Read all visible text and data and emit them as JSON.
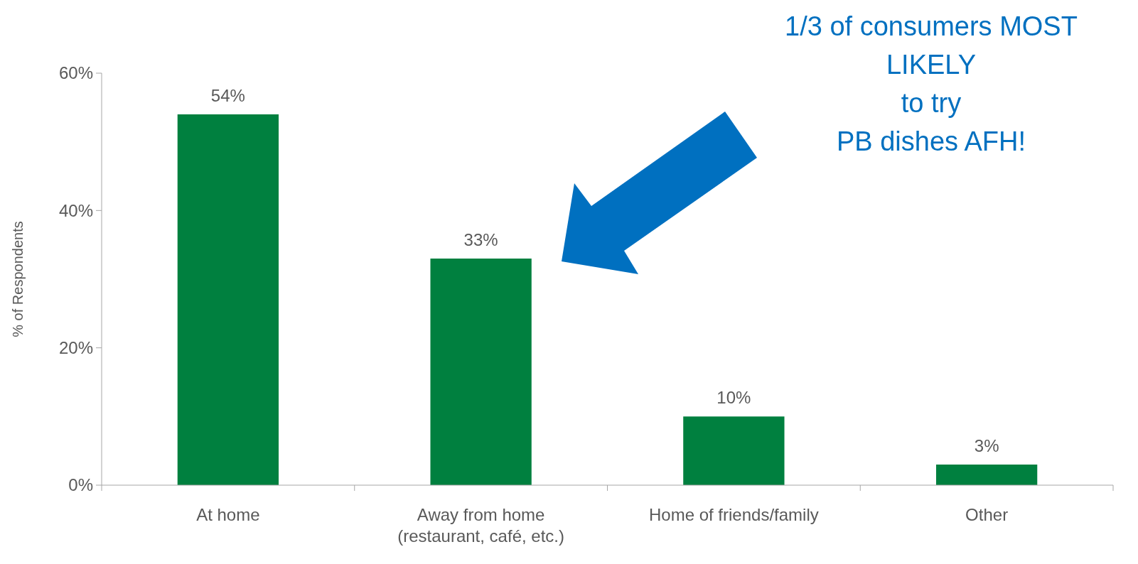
{
  "chart_data": {
    "type": "bar",
    "categories": [
      "At home",
      "Away from home\n(restaurant, café, etc.)",
      "Home of friends/family",
      "Other"
    ],
    "values": [
      54,
      33,
      10,
      3
    ],
    "value_labels": [
      "54%",
      "33%",
      "10%",
      "3%"
    ],
    "color": "#00803f",
    "ylabel": "% of Respondents",
    "ylim": [
      0,
      60
    ],
    "yticks": [
      {
        "value": 0,
        "label": "0%"
      },
      {
        "value": 20,
        "label": "20%"
      },
      {
        "value": 40,
        "label": "40%"
      },
      {
        "value": 60,
        "label": "60%"
      }
    ],
    "grid": false,
    "annotations": [
      "1/3 of consumers MOST\nLIKELY\nto try\nPB dishes AFH!"
    ]
  }
}
